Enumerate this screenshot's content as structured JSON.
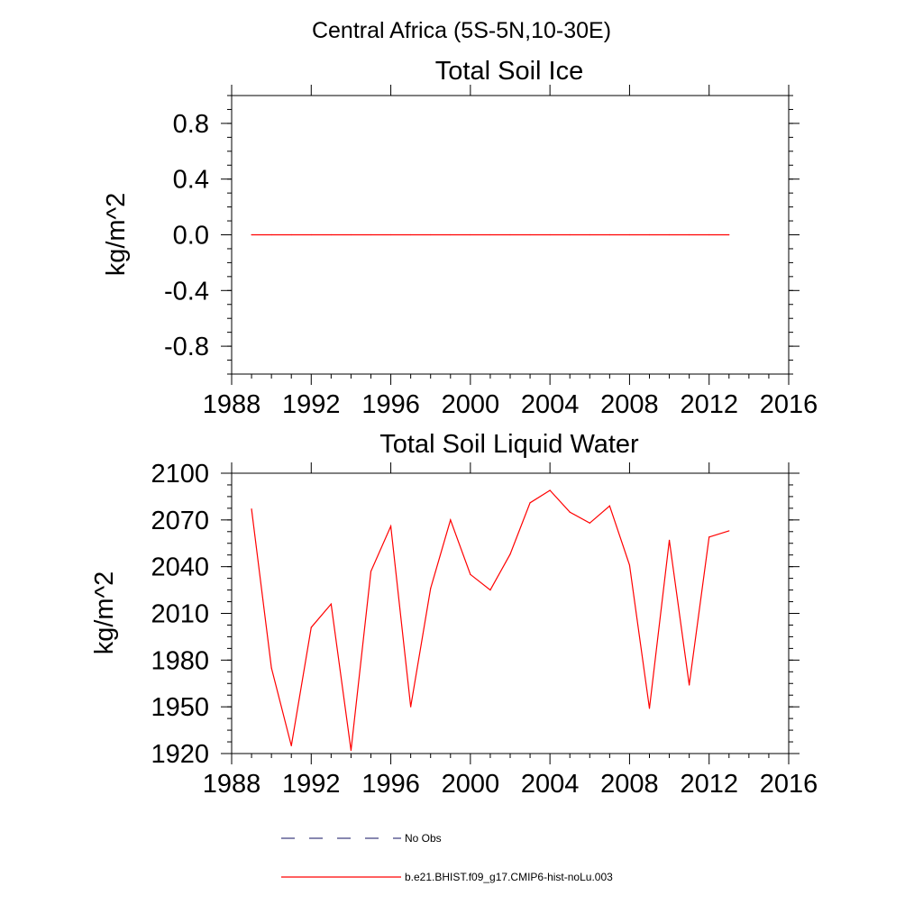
{
  "page_title": "Central Africa (5S-5N,10-30E)",
  "colors": {
    "series": "#ff0000",
    "axis": "#000000",
    "no_obs": "#404080"
  },
  "legend": {
    "items": [
      {
        "label": "No Obs",
        "style": "dashed"
      },
      {
        "label": "b.e21.BHIST.f09_g17.CMIP6-hist-noLu.003",
        "style": "solid"
      }
    ]
  },
  "chart_data": [
    {
      "type": "line",
      "title": "Total Soil Ice",
      "xlabel": "",
      "ylabel": "kg/m^2",
      "xlim": [
        1988,
        2016
      ],
      "ylim": [
        -1.0,
        1.0
      ],
      "x_ticks": [
        1988,
        1992,
        1996,
        2000,
        2004,
        2008,
        2012,
        2016
      ],
      "y_ticks": [
        -0.8,
        -0.4,
        0.0,
        0.4,
        0.8
      ],
      "y_tick_labels": [
        "-0.8",
        "-0.4",
        "0.0",
        "0.4",
        "0.8"
      ],
      "series": [
        {
          "name": "b.e21.BHIST.f09_g17.CMIP6-hist-noLu.003",
          "x": [
            1989,
            1990,
            1991,
            1992,
            1993,
            1994,
            1995,
            1996,
            1997,
            1998,
            1999,
            2000,
            2001,
            2002,
            2003,
            2004,
            2005,
            2006,
            2007,
            2008,
            2009,
            2010,
            2011,
            2012,
            2013
          ],
          "values": [
            0,
            0,
            0,
            0,
            0,
            0,
            0,
            0,
            0,
            0,
            0,
            0,
            0,
            0,
            0,
            0,
            0,
            0,
            0,
            0,
            0,
            0,
            0,
            0,
            0
          ]
        }
      ],
      "grid": false
    },
    {
      "type": "line",
      "title": "Total Soil Liquid Water",
      "xlabel": "",
      "ylabel": "kg/m^2",
      "xlim": [
        1988,
        2016
      ],
      "ylim": [
        1920,
        2100
      ],
      "x_ticks": [
        1988,
        1992,
        1996,
        2000,
        2004,
        2008,
        2012,
        2016
      ],
      "y_ticks": [
        1920,
        1950,
        1980,
        2010,
        2040,
        2070,
        2100
      ],
      "y_tick_labels": [
        "1920",
        "1950",
        "1980",
        "2010",
        "2040",
        "2070",
        "2100"
      ],
      "series": [
        {
          "name": "b.e21.BHIST.f09_g17.CMIP6-hist-noLu.003",
          "x": [
            1989,
            1990,
            1991,
            1992,
            1993,
            1994,
            1995,
            1996,
            1997,
            1998,
            1999,
            2000,
            2001,
            2002,
            2003,
            2004,
            2005,
            2006,
            2007,
            2008,
            2009,
            2010,
            2011,
            2012,
            2013
          ],
          "values": [
            2077,
            1975,
            1925,
            2001,
            2016,
            1922,
            2037,
            2066,
            1950,
            2026,
            2070,
            2035,
            2025,
            2048,
            2081,
            2089,
            2075,
            2068,
            2079,
            2041,
            1949,
            2057,
            1964,
            2059,
            2063
          ]
        }
      ],
      "grid": false
    }
  ]
}
